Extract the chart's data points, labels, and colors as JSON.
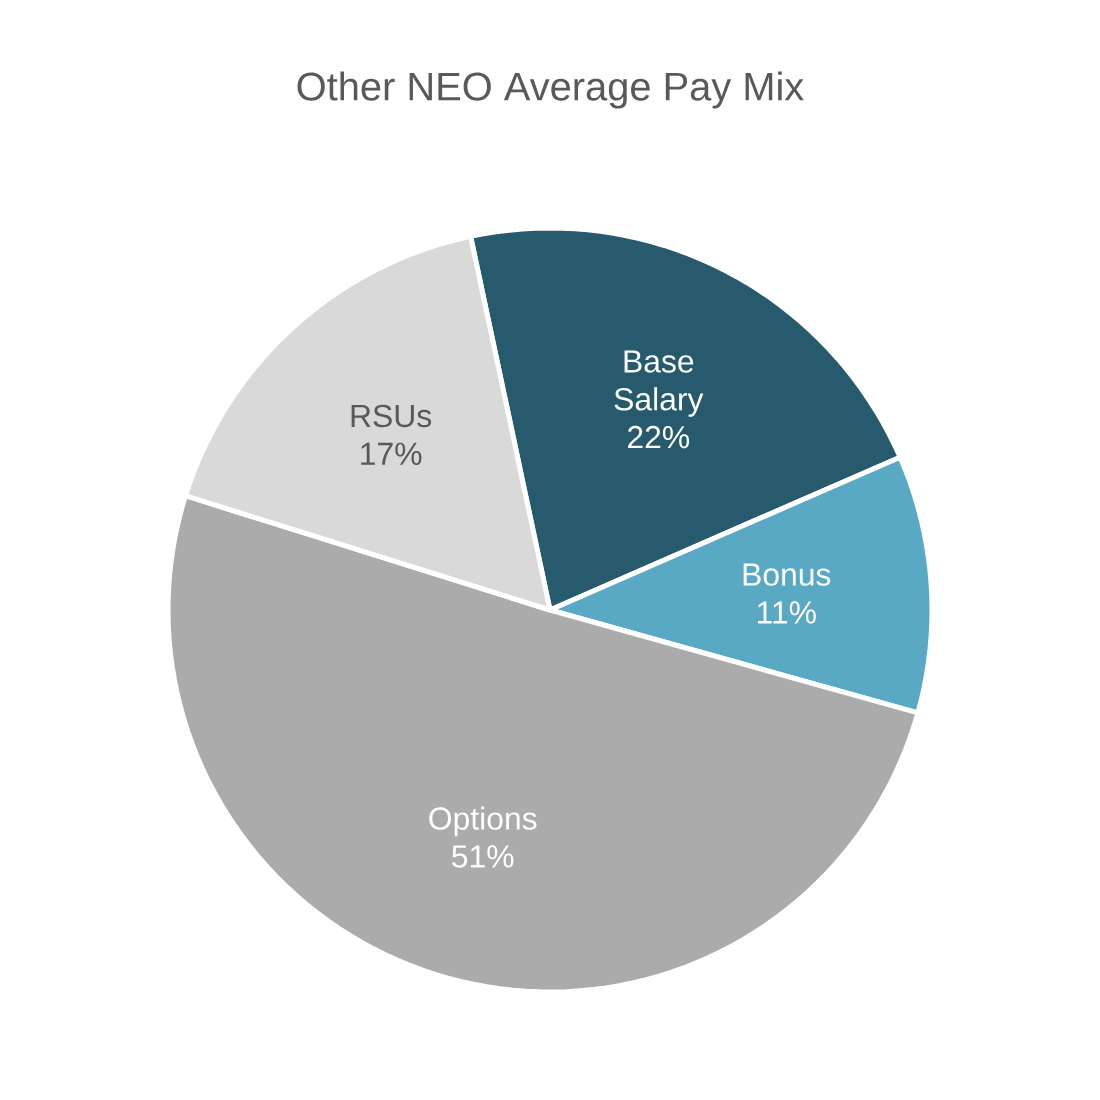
{
  "chart_data": {
    "type": "pie",
    "title": "Other NEO Average Pay Mix",
    "categories": [
      "Base Salary",
      "Bonus",
      "Options",
      "RSUs"
    ],
    "values": [
      22,
      11,
      51,
      17
    ],
    "value_labels": [
      "22%",
      "11%",
      "51%",
      "17%"
    ],
    "colors": [
      "#265a6c",
      "#5aa9c4",
      "#ababab",
      "#d9d9d9"
    ]
  }
}
